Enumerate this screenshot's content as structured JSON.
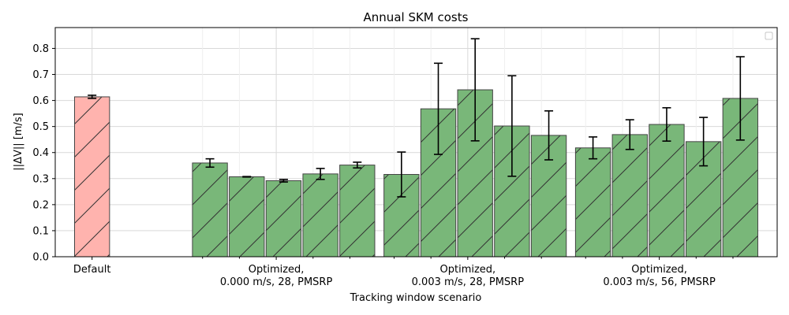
{
  "chart_data": {
    "type": "bar",
    "title": "Annual SKM costs",
    "xlabel": "Tracking window scenario",
    "ylabel": "||ΔV|| [m/s]",
    "ylim": [
      0,
      0.88
    ],
    "yticks": [
      0.0,
      0.1,
      0.2,
      0.3,
      0.4,
      0.5,
      0.6,
      0.7,
      0.8
    ],
    "grid": true,
    "legend": "top-right (empty)",
    "x_ticks": [
      {
        "position": 0,
        "label": [
          "Default"
        ]
      },
      {
        "position": 5,
        "label": [
          "Optimized,",
          "0.000 m/s, 28, PMSRP"
        ]
      },
      {
        "position": 10.2,
        "label": [
          "Optimized,",
          "0.003 m/s, 28, PMSRP"
        ]
      },
      {
        "position": 15.4,
        "label": [
          "Optimized,",
          "0.003 m/s, 56, PMSRP"
        ]
      }
    ],
    "minor_x_ticks": [
      3,
      4,
      6,
      7,
      8.2,
      9.2,
      11.2,
      12.2,
      13.4,
      14.4,
      16.4,
      17.4
    ],
    "bars": [
      {
        "group": "Default",
        "x": 0,
        "value": 0.614,
        "err": 0.006,
        "color": "#ffb3ae"
      },
      {
        "group": "Optimized, 0.000 m/s, 28, PMSRP",
        "x": 3.2,
        "value": 0.36,
        "err": 0.016,
        "color": "#79b779"
      },
      {
        "group": "Optimized, 0.000 m/s, 28, PMSRP",
        "x": 4.2,
        "value": 0.307,
        "err": 0.001,
        "color": "#79b779"
      },
      {
        "group": "Optimized, 0.000 m/s, 28, PMSRP",
        "x": 5.2,
        "value": 0.292,
        "err": 0.005,
        "color": "#79b779"
      },
      {
        "group": "Optimized, 0.000 m/s, 28, PMSRP",
        "x": 6.2,
        "value": 0.318,
        "err": 0.021,
        "color": "#79b779"
      },
      {
        "group": "Optimized, 0.000 m/s, 28, PMSRP",
        "x": 7.2,
        "value": 0.352,
        "err": 0.011,
        "color": "#79b779"
      },
      {
        "group": "Optimized, 0.003 m/s, 28, PMSRP",
        "x": 8.4,
        "value": 0.316,
        "err": 0.086,
        "color": "#79b779"
      },
      {
        "group": "Optimized, 0.003 m/s, 28, PMSRP",
        "x": 9.4,
        "value": 0.568,
        "err": 0.175,
        "color": "#79b779"
      },
      {
        "group": "Optimized, 0.003 m/s, 28, PMSRP",
        "x": 10.4,
        "value": 0.641,
        "err": 0.196,
        "color": "#79b779"
      },
      {
        "group": "Optimized, 0.003 m/s, 28, PMSRP",
        "x": 11.4,
        "value": 0.502,
        "err": 0.193,
        "color": "#79b779"
      },
      {
        "group": "Optimized, 0.003 m/s, 28, PMSRP",
        "x": 12.4,
        "value": 0.466,
        "err": 0.094,
        "color": "#79b779"
      },
      {
        "group": "Optimized, 0.003 m/s, 56, PMSRP",
        "x": 13.6,
        "value": 0.418,
        "err": 0.042,
        "color": "#79b779"
      },
      {
        "group": "Optimized, 0.003 m/s, 56, PMSRP",
        "x": 14.6,
        "value": 0.469,
        "err": 0.057,
        "color": "#79b779"
      },
      {
        "group": "Optimized, 0.003 m/s, 56, PMSRP",
        "x": 15.6,
        "value": 0.508,
        "err": 0.064,
        "color": "#79b779"
      },
      {
        "group": "Optimized, 0.003 m/s, 56, PMSRP",
        "x": 16.6,
        "value": 0.442,
        "err": 0.093,
        "color": "#79b779"
      },
      {
        "group": "Optimized, 0.003 m/s, 56, PMSRP",
        "x": 17.6,
        "value": 0.608,
        "err": 0.16,
        "color": "#79b779"
      }
    ]
  }
}
